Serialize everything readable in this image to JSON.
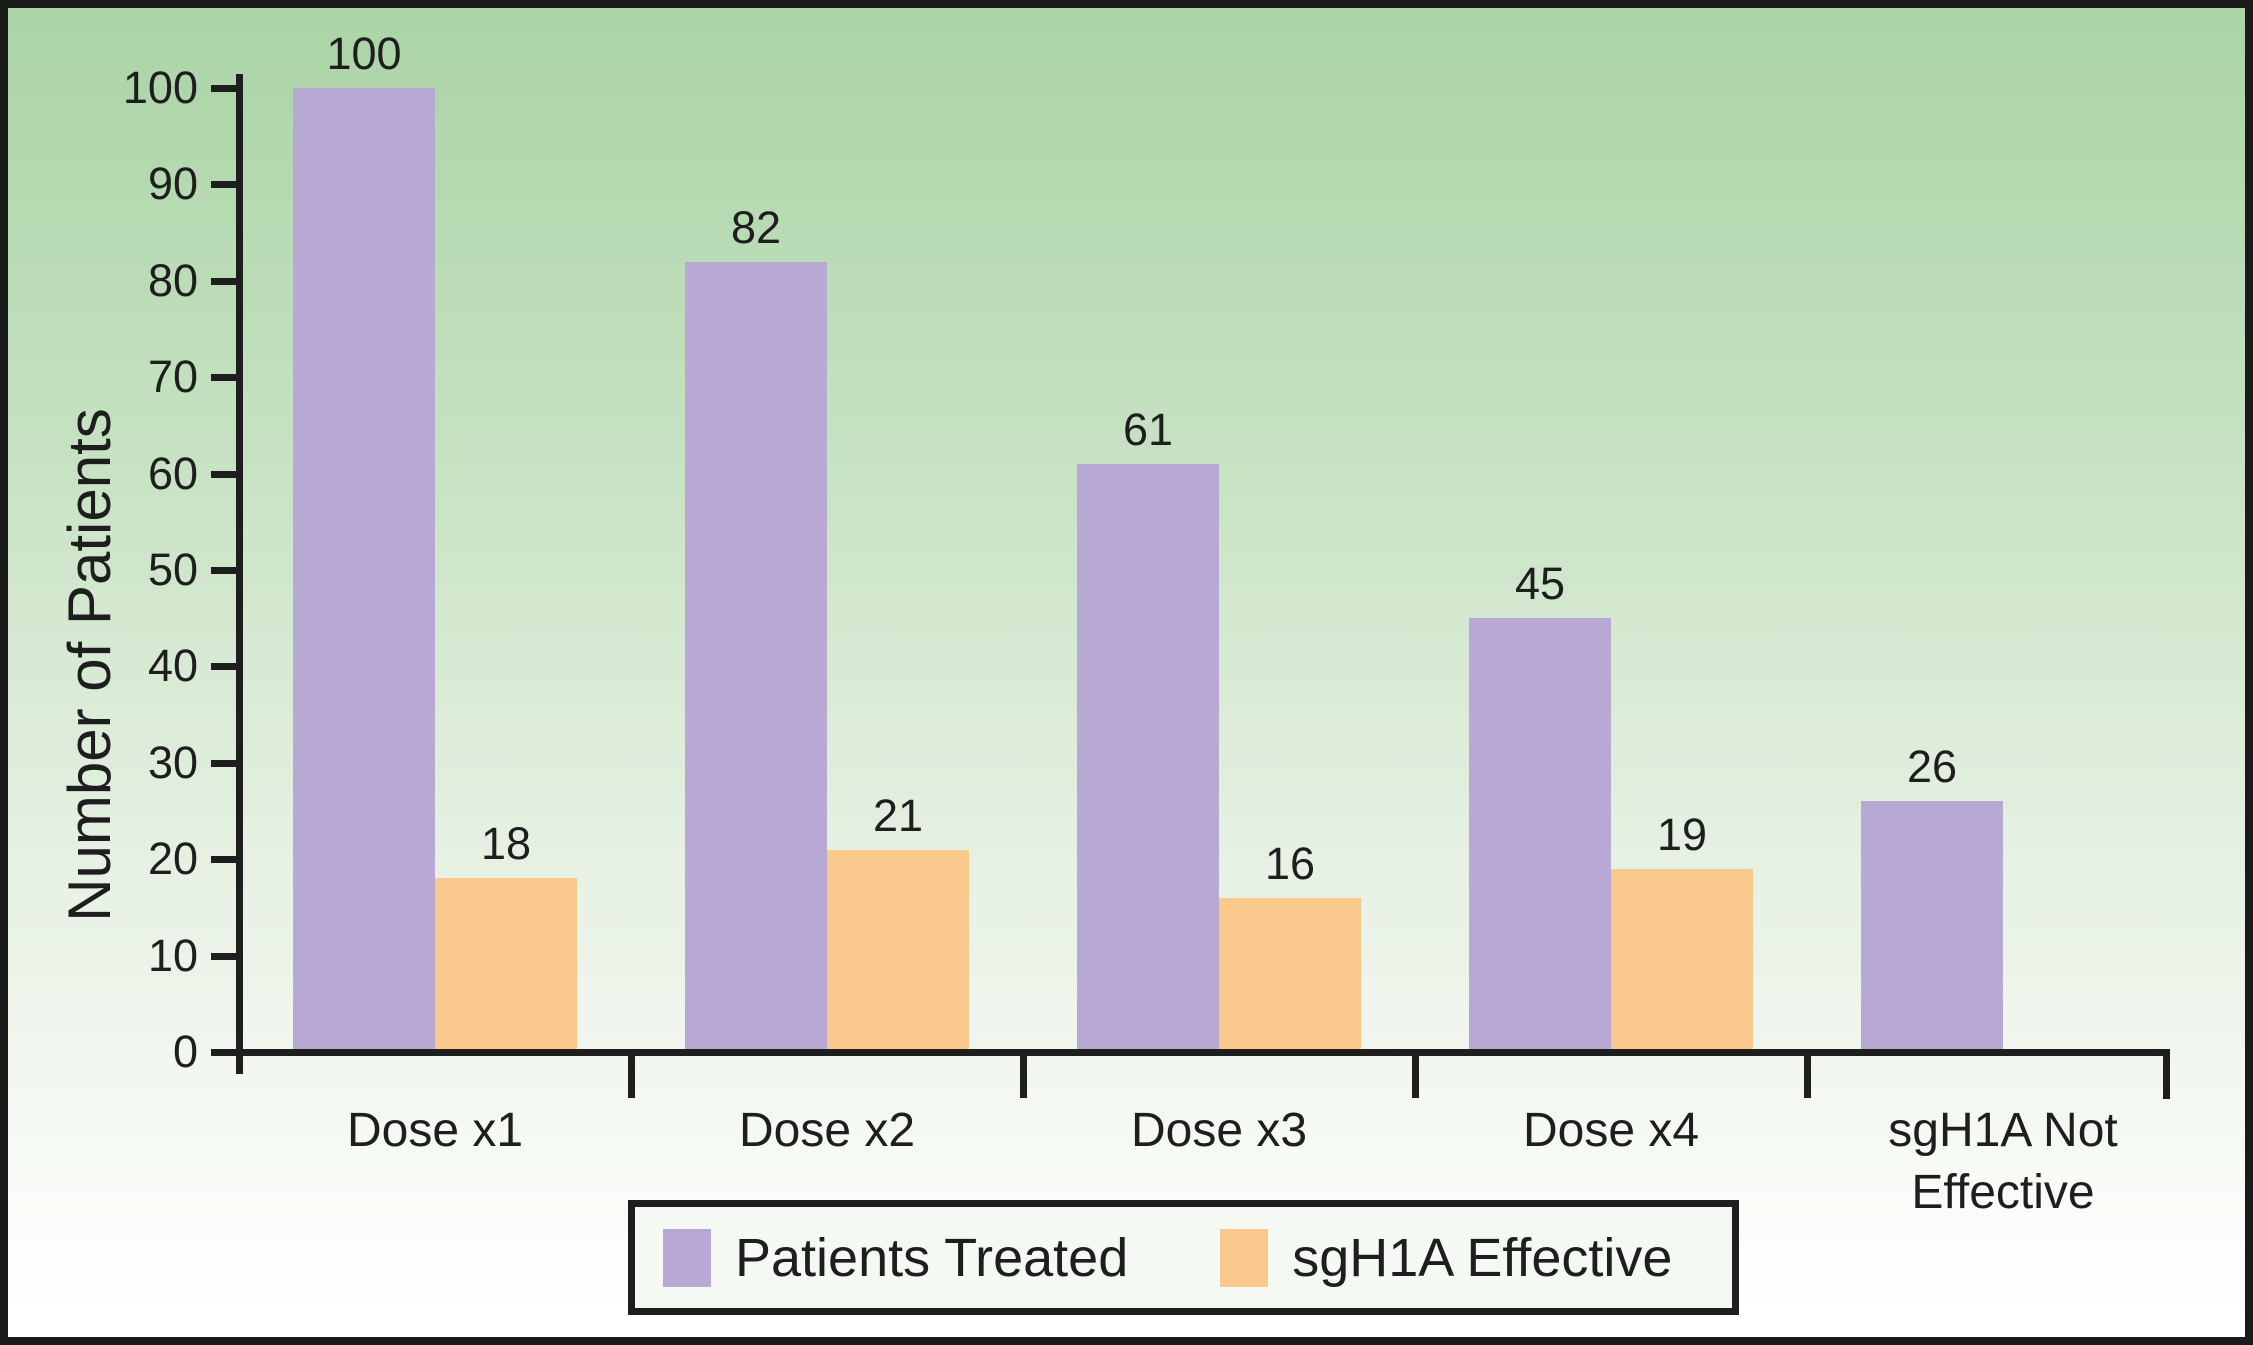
{
  "chart_data": {
    "type": "bar",
    "title": "",
    "xlabel": "",
    "ylabel": "Number of Patients",
    "categories": [
      "Dose x1",
      "Dose x2",
      "Dose x3",
      "Dose x4",
      "sgH1A Not Effective"
    ],
    "series": [
      {
        "name": "Patients Treated",
        "color": "#b7a9d4",
        "values": [
          100,
          82,
          61,
          45,
          26
        ]
      },
      {
        "name": "sgH1A Effective",
        "color": "#f9c98d",
        "values": [
          18,
          21,
          16,
          19,
          null
        ]
      }
    ],
    "ylim": [
      0,
      100
    ],
    "yticks": [
      0,
      10,
      20,
      30,
      40,
      50,
      60,
      70,
      80,
      90,
      100
    ],
    "grid": false,
    "bar_value_labels_shown": true,
    "legend_position": "bottom"
  },
  "style": {
    "axis_color": "#1e1e1e",
    "frame_border_color": "#1b1b1b",
    "background_top": "#aad4a6",
    "background_bottom": "#ffffff",
    "legend_background": "#f5f9f4"
  }
}
